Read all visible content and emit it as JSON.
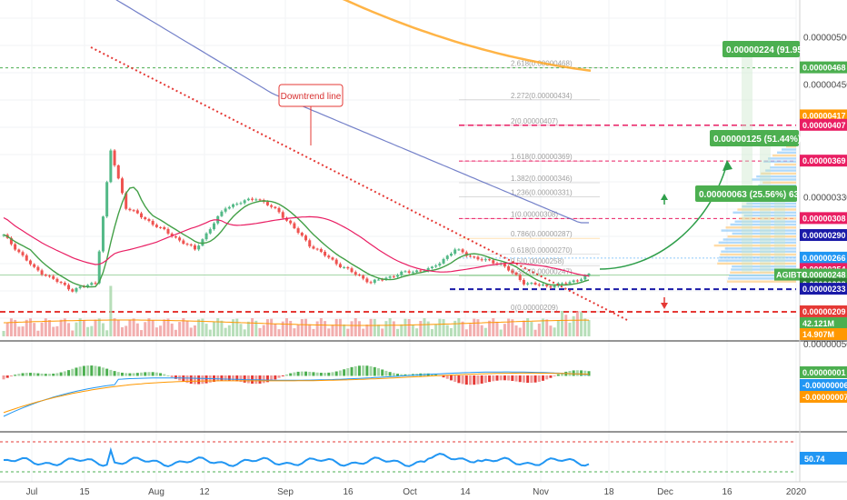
{
  "chart_data": {
    "type": "candlestick",
    "symbol": "AGIBTC",
    "date_labels": [
      "Jul",
      "15",
      "Aug",
      "12",
      "Sep",
      "16",
      "Oct",
      "14",
      "Nov",
      "18",
      "Dec",
      "16",
      "2020"
    ],
    "price_axis": {
      "ticks": [
        "0.00000500",
        "0.00000450",
        "0.00000330"
      ],
      "range": [
        1.8e-06,
        5.4e-06
      ]
    },
    "price_tags": [
      {
        "text": "0.00000468",
        "color": "#4caf50"
      },
      {
        "text": "0.00000417",
        "color": "#ff9800"
      },
      {
        "text": "0.00000407",
        "color": "#e91e63"
      },
      {
        "text": "0.00000369",
        "color": "#e91e63"
      },
      {
        "text": "0.00000308",
        "color": "#e91e63"
      },
      {
        "text": "0.00000290",
        "color": "#1a1aa8"
      },
      {
        "text": "0.00000266",
        "color": "#2196f3"
      },
      {
        "text": "0.00000254",
        "color": "#e91e63"
      },
      {
        "text": "0.00000248",
        "color": "#4caf50",
        "symbol": "AGIBTC"
      },
      {
        "text": "0.00000238",
        "color": "#2e7d32"
      },
      {
        "text": "0.00000233",
        "color": "#1a1aa8"
      },
      {
        "text": "0.00000209",
        "color": "#e53935"
      },
      {
        "text": "42.121M",
        "color": "#4caf50"
      },
      {
        "text": "14.907M",
        "color": "#ff9800"
      }
    ],
    "fib_levels": [
      {
        "label": "2.618(0.00000468)"
      },
      {
        "label": "2.272(0.00000434)"
      },
      {
        "label": "2(0.00000407)"
      },
      {
        "label": "1.618(0.00000369)"
      },
      {
        "label": "1.382(0.00000346)"
      },
      {
        "label": "1.236(0.00000331)"
      },
      {
        "label": "1(0.00000308)"
      },
      {
        "label": "0.786(0.00000287)"
      },
      {
        "label": "0.618(0.00000270)"
      },
      {
        "label": "0.5(0.00000258)"
      },
      {
        "label": "0.382(0.00000247)"
      },
      {
        "label": "0(0.00000209)"
      }
    ],
    "callouts": [
      {
        "text": "0.00000224 (91.95",
        "color": "#4caf50"
      },
      {
        "text": "0.00000125 (51.44%)",
        "color": "#4caf50"
      },
      {
        "text": "0.00000063 (25.56%) 63",
        "color": "#4caf50"
      }
    ],
    "annotation": "Downtrend line",
    "macd_tags": [
      {
        "text": "0.00000001",
        "color": "#4caf50"
      },
      {
        "text": "-0.00000006",
        "color": "#2196f3"
      },
      {
        "text": "-0.00000007",
        "color": "#ff9800"
      }
    ],
    "macd_axis_label": "0.00000050",
    "rsi_tag": {
      "text": "50.74",
      "color": "#2196f3"
    }
  }
}
